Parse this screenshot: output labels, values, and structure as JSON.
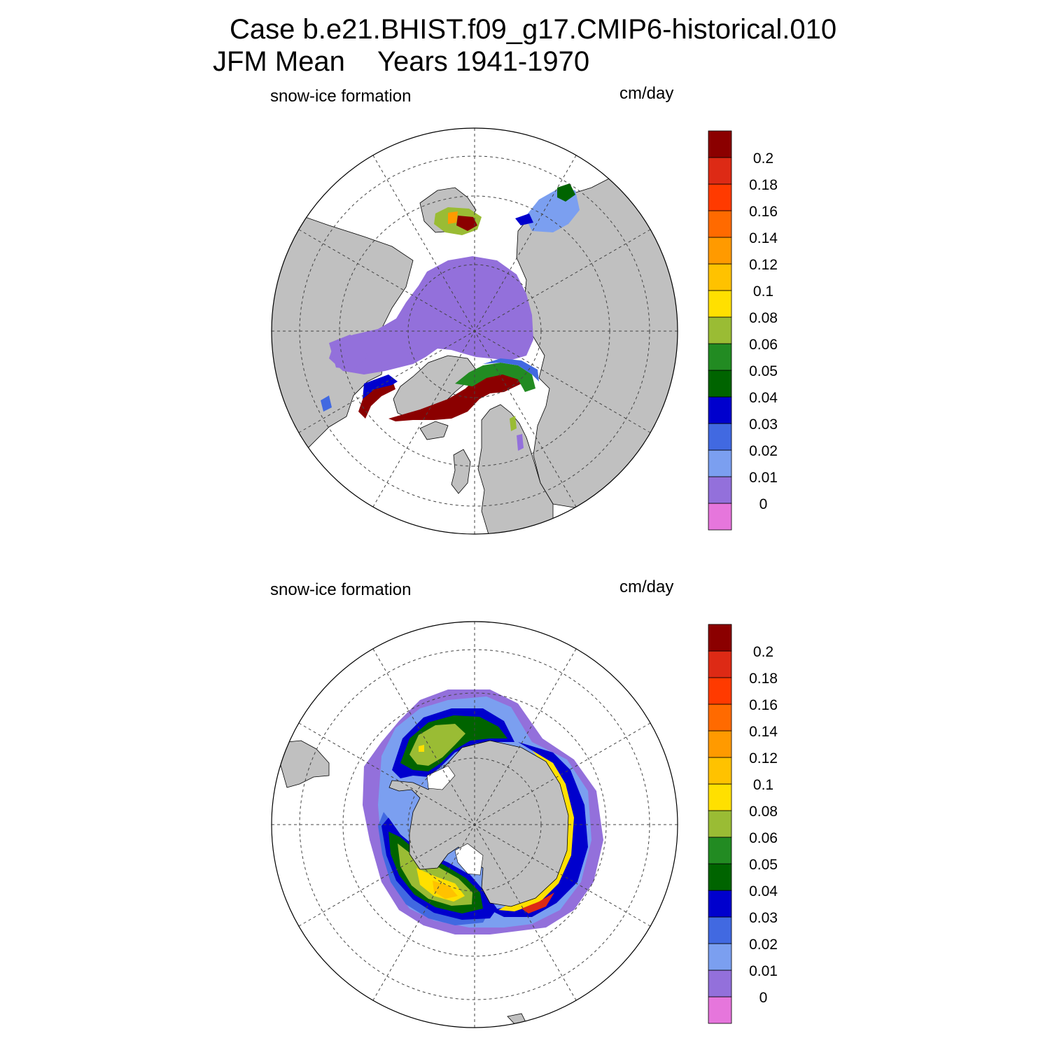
{
  "title": {
    "case": "Case b.e21.BHIST.f09_g17.CMIP6-historical.010",
    "season": "JFM Mean",
    "years": "Years 1941-1970"
  },
  "panels": [
    {
      "hemisphere": "north",
      "field_label": "snow-ice formation",
      "units_label": "cm/day"
    },
    {
      "hemisphere": "south",
      "field_label": "snow-ice formation",
      "units_label": "cm/day"
    }
  ],
  "colorbar": {
    "colors": [
      "#e676dc",
      "#9370db",
      "#7b9ff0",
      "#4169e1",
      "#0000cd",
      "#006400",
      "#228b22",
      "#9abc34",
      "#ffe000",
      "#ffc200",
      "#ff9a00",
      "#ff6a00",
      "#ff3a00",
      "#dd2a15",
      "#8b0000"
    ],
    "labels": [
      "0",
      "0.01",
      "0.02",
      "0.03",
      "0.04",
      "0.05",
      "0.06",
      "0.08",
      "0.1",
      "0.12",
      "0.14",
      "0.16",
      "0.18",
      "0.2"
    ]
  },
  "map_colors": {
    "land": "#c0c0c0",
    "ocean": "#ffffff"
  }
}
